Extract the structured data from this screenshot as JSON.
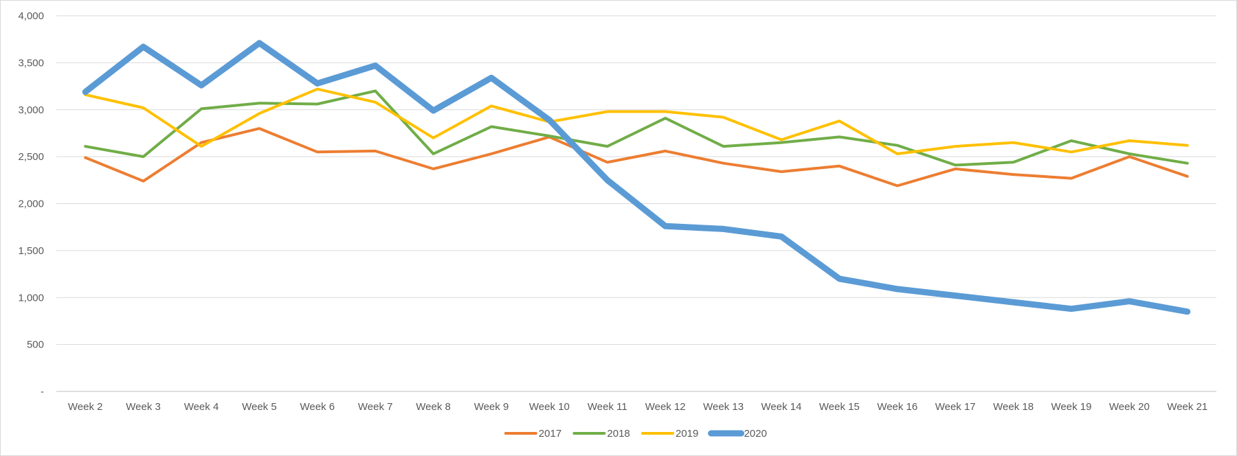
{
  "chart_data": {
    "type": "line",
    "title": "",
    "xlabel": "",
    "ylabel": "",
    "categories": [
      "Week 2",
      "Week 3",
      "Week 4",
      "Week 5",
      "Week 6",
      "Week 7",
      "Week 8",
      "Week 9",
      "Week 10",
      "Week 11",
      "Week 12",
      "Week 13",
      "Week 14",
      "Week 15",
      "Week 16",
      "Week 17",
      "Week 18",
      "Week 19",
      "Week 20",
      "Week 21"
    ],
    "ylim": [
      0,
      4000
    ],
    "yticks": [
      0,
      500,
      1000,
      1500,
      2000,
      2500,
      3000,
      3500,
      4000
    ],
    "ytick_labels": [
      "-",
      "500",
      "1,000",
      "1,500",
      "2,000",
      "2,500",
      "3,000",
      "3,500",
      "4,000"
    ],
    "grid": "horizontal",
    "legend_position": "bottom",
    "series": [
      {
        "name": "2017",
        "color": "#ED7D31",
        "line_weight": "normal",
        "values": [
          2490,
          2240,
          2650,
          2800,
          2550,
          2560,
          2370,
          2530,
          2710,
          2440,
          2560,
          2430,
          2340,
          2400,
          2190,
          2370,
          2310,
          2270,
          2500,
          2290
        ]
      },
      {
        "name": "2018",
        "color": "#70AD47",
        "line_weight": "normal",
        "values": [
          2610,
          2500,
          3010,
          3070,
          3060,
          3200,
          2530,
          2820,
          2720,
          2610,
          2910,
          2610,
          2650,
          2710,
          2620,
          2410,
          2440,
          2670,
          2530,
          2430
        ]
      },
      {
        "name": "2019",
        "color": "#FFC000",
        "line_weight": "normal",
        "values": [
          3160,
          3020,
          2610,
          2960,
          3220,
          3080,
          2700,
          3040,
          2870,
          2980,
          2980,
          2920,
          2680,
          2880,
          2530,
          2610,
          2650,
          2550,
          2670,
          2620
        ]
      },
      {
        "name": "2020",
        "color": "#5B9BD5",
        "line_weight": "thick",
        "values": [
          3190,
          3670,
          3260,
          3710,
          3280,
          3470,
          2990,
          3340,
          2890,
          2250,
          1760,
          1730,
          1650,
          1200,
          1090,
          1020,
          950,
          880,
          960,
          850
        ]
      }
    ]
  }
}
